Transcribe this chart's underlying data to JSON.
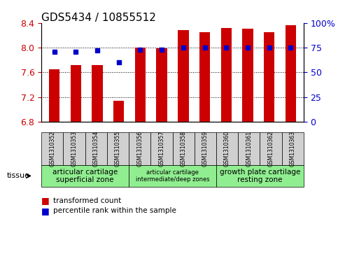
{
  "title": "GDS5434 / 10855512",
  "samples": [
    "GSM1310352",
    "GSM1310353",
    "GSM1310354",
    "GSM1310355",
    "GSM1310356",
    "GSM1310357",
    "GSM1310358",
    "GSM1310359",
    "GSM1310360",
    "GSM1310361",
    "GSM1310362",
    "GSM1310363"
  ],
  "transformed_count": [
    7.65,
    7.72,
    7.72,
    7.14,
    8.0,
    7.99,
    8.28,
    8.25,
    8.32,
    8.31,
    8.25,
    8.36
  ],
  "percentile_rank": [
    71,
    71,
    72,
    60,
    73,
    73,
    75,
    75,
    75,
    75,
    75,
    75
  ],
  "ylim_left": [
    6.8,
    8.4
  ],
  "ylim_right": [
    0,
    100
  ],
  "yticks_left": [
    6.8,
    7.2,
    7.6,
    8.0,
    8.4
  ],
  "yticks_right": [
    0,
    25,
    50,
    75,
    100
  ],
  "bar_color": "#cc0000",
  "dot_color": "#0000cc",
  "background_plot": "#ffffff",
  "background_xtick": "#d0d0d0",
  "tissue_groups": [
    {
      "label": "articular cartilage\nsuperficial zone",
      "indices": [
        0,
        1,
        2,
        3
      ],
      "color": "#b3ffb3"
    },
    {
      "label": "articular cartilage\nintermediate/deep zones",
      "indices": [
        4,
        5,
        6,
        7
      ],
      "color": "#b3ffb3"
    },
    {
      "label": "growth plate cartilage\nresting zone",
      "indices": [
        8,
        9,
        10,
        11
      ],
      "color": "#b3ffb3"
    }
  ],
  "tissue_label": "tissue",
  "legend_items": [
    {
      "color": "#cc0000",
      "label": "transformed count"
    },
    {
      "color": "#0000cc",
      "label": "percentile rank within the sample"
    }
  ]
}
